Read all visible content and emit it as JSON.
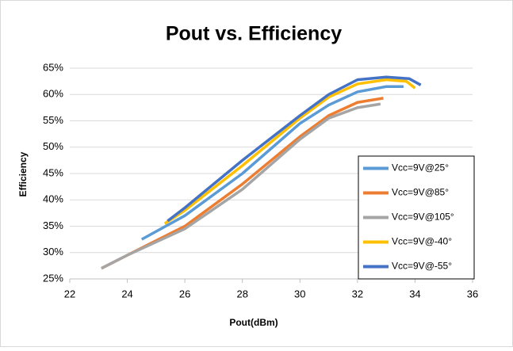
{
  "chart_data": {
    "type": "line",
    "title": "Pout vs. Efficiency",
    "x_label": "Pout(dBm)",
    "y_label": "Efficiency",
    "xlim": [
      22,
      36
    ],
    "xticks": [
      22,
      24,
      26,
      28,
      30,
      32,
      34,
      36
    ],
    "ylim": [
      25,
      65
    ],
    "yticks": [
      {
        "value": 25,
        "label": "25%"
      },
      {
        "value": 30,
        "label": "30%"
      },
      {
        "value": 35,
        "label": "35%"
      },
      {
        "value": 40,
        "label": "40%"
      },
      {
        "value": 45,
        "label": "45%"
      },
      {
        "value": 50,
        "label": "50%"
      },
      {
        "value": 55,
        "label": "55%"
      },
      {
        "value": 60,
        "label": "60%"
      },
      {
        "value": 65,
        "label": "65%"
      }
    ],
    "grid": true,
    "legend": "right",
    "series": [
      {
        "name": "Vcc=9V@25°",
        "color": "#5b9bd5",
        "x": [
          24.5,
          26,
          28,
          30,
          31,
          32,
          33,
          33.6
        ],
        "values": [
          32.5,
          37,
          45,
          54.5,
          58,
          60.5,
          61.5,
          61.5
        ]
      },
      {
        "name": "Vcc=9V@85°",
        "color": "#ed7d31",
        "x": [
          23.1,
          24,
          26,
          28,
          30,
          31,
          32,
          32.9
        ],
        "values": [
          27,
          29.5,
          35,
          43,
          52,
          56,
          58.5,
          59.3
        ]
      },
      {
        "name": "Vcc=9V@105°",
        "color": "#a5a5a5",
        "x": [
          23.1,
          24,
          26,
          28,
          30,
          31,
          32,
          32.8
        ],
        "values": [
          27,
          29.5,
          34.5,
          42,
          51.5,
          55.5,
          57.5,
          58.2
        ]
      },
      {
        "name": "Vcc=9V@-40°",
        "color": "#ffc000",
        "x": [
          25.3,
          26,
          28,
          30,
          31,
          32,
          33,
          33.7,
          34
        ],
        "values": [
          35.5,
          38,
          46.5,
          55.5,
          59.5,
          62,
          62.8,
          62.5,
          61.2
        ]
      },
      {
        "name": "Vcc=9V@-55°",
        "color": "#4472c4",
        "x": [
          25.4,
          26,
          28,
          30,
          31,
          32,
          33,
          33.8,
          34.2
        ],
        "values": [
          36,
          38.5,
          47.5,
          56,
          60,
          62.8,
          63.3,
          63,
          61.8
        ]
      }
    ]
  }
}
